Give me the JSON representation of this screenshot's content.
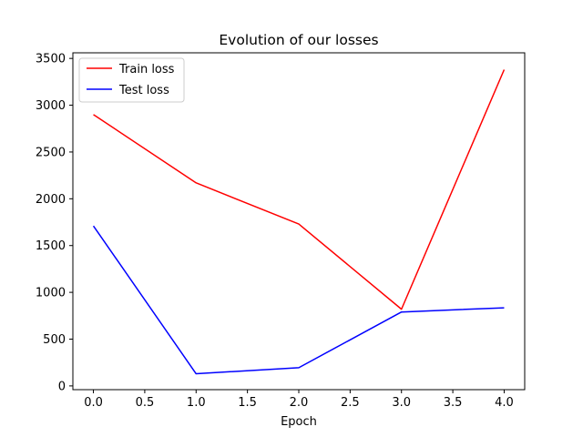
{
  "chart_data": {
    "type": "line",
    "title": "Evolution of our losses",
    "xlabel": "Epoch",
    "ylabel": "",
    "x": [
      0,
      1,
      2,
      3,
      4
    ],
    "xlim": [
      -0.2,
      4.2
    ],
    "ylim": [
      -40,
      3560
    ],
    "xticks": [
      "0.0",
      "0.5",
      "1.0",
      "1.5",
      "2.0",
      "2.5",
      "3.0",
      "3.5",
      "4.0"
    ],
    "yticks": [
      "0",
      "500",
      "1000",
      "1500",
      "2000",
      "2500",
      "3000",
      "3500"
    ],
    "grid": false,
    "legend_position": "upper-left",
    "series": [
      {
        "name": "Train loss",
        "color": "#ff0000",
        "values": [
          2900,
          2170,
          1730,
          820,
          3380
        ]
      },
      {
        "name": "Test loss",
        "color": "#0000ff",
        "values": [
          1710,
          130,
          195,
          790,
          835
        ]
      }
    ]
  }
}
